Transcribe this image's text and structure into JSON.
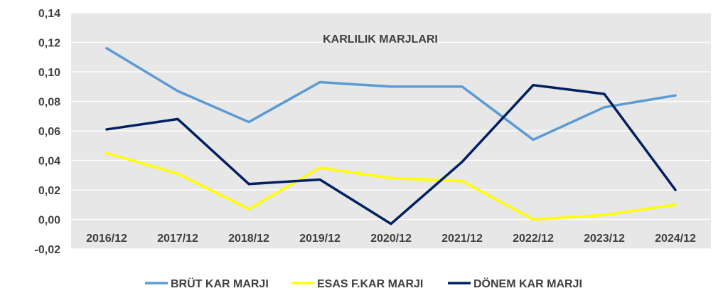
{
  "chart_data": {
    "type": "line",
    "title": "KARLILIK MARJLARI",
    "xlabel": "",
    "ylabel": "",
    "categories": [
      "2016/12",
      "2017/12",
      "2018/12",
      "2019/12",
      "2020/12",
      "2021/12",
      "2022/12",
      "2023/12",
      "2024/12"
    ],
    "ylim": [
      -0.02,
      0.14
    ],
    "yticks": [
      "0,14",
      "0,12",
      "0,10",
      "0,08",
      "0,06",
      "0,04",
      "0,02",
      "0,00",
      "-0,02"
    ],
    "grid": true,
    "legend_position": "bottom",
    "series": [
      {
        "name": "BRÜT KAR MARJI",
        "color": "#5B9BD5",
        "values": [
          0.116,
          0.087,
          0.066,
          0.093,
          0.09,
          0.09,
          0.054,
          0.076,
          0.084
        ]
      },
      {
        "name": "ESAS F.KAR MARJI",
        "color": "#FFFF00",
        "values": [
          0.045,
          0.031,
          0.007,
          0.035,
          0.028,
          0.026,
          0.0,
          0.003,
          0.01
        ]
      },
      {
        "name": "DÖNEM KAR MARJI",
        "color": "#002060",
        "values": [
          0.061,
          0.068,
          0.024,
          0.027,
          -0.003,
          0.039,
          0.091,
          0.085,
          0.02
        ]
      }
    ]
  }
}
